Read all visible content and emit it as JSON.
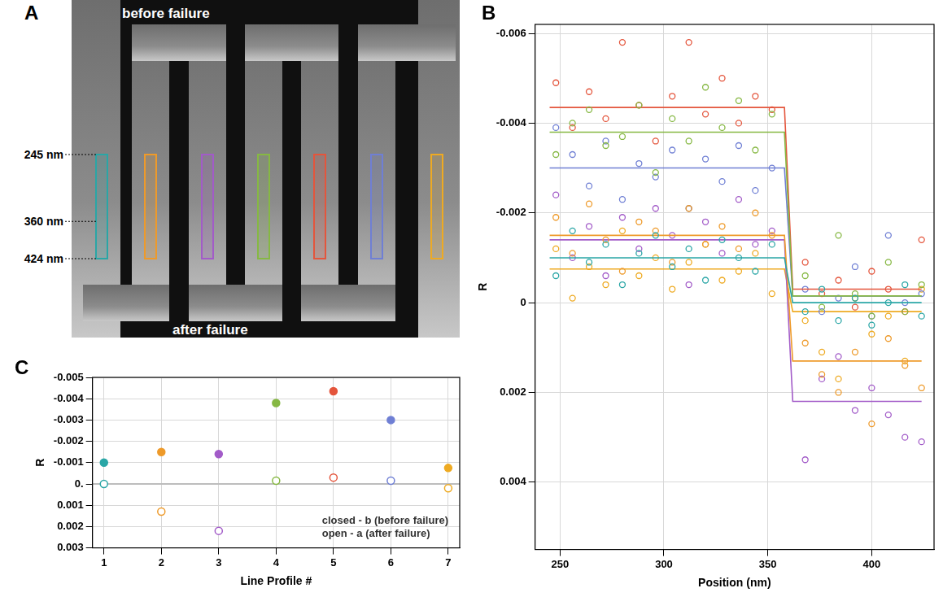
{
  "chart_data": [
    {
      "panel": "A",
      "type": "image",
      "labels": [
        "before failure",
        "after failure"
      ],
      "yticks": [
        {
          "value": 245,
          "label": "245 nm"
        },
        {
          "value": 360,
          "label": "360 nm"
        },
        {
          "value": 424,
          "label": "424 nm"
        }
      ],
      "colors": [
        "#2aa6a6",
        "#ee9a2a",
        "#a25bc8",
        "#86b843",
        "#e4553c",
        "#6f7fd4",
        "#eeaa22"
      ]
    },
    {
      "panel": "B",
      "type": "scatter",
      "x_label": "Position (nm)",
      "y_label": "R",
      "xlim": [
        238,
        430
      ],
      "xticks": [
        250,
        300,
        350,
        400
      ],
      "ylim": [
        -0.0062,
        0.0055
      ],
      "yticks": [
        -0.006,
        -0.004,
        -0.002,
        0,
        0.002,
        0.004
      ],
      "grid": true,
      "tick_labels": true,
      "x": [
        248,
        256,
        264,
        272,
        280,
        288,
        296,
        304,
        312,
        320,
        328,
        336,
        344,
        352,
        368,
        376,
        384,
        392,
        400,
        408,
        416,
        424
      ],
      "series": [
        {
          "color": "#2aa6a6",
          "marker": "open",
          "values": [
            -0.0006,
            -0.0016,
            -0.0009,
            -0.0013,
            -0.0004,
            -0.0011,
            -0.0015,
            -0.0008,
            -0.0012,
            -0.0005,
            -0.0014,
            -0.001,
            -0.0007,
            -0.0013,
            0.0002,
            -0.0003,
            0.0004,
            -0.0001,
            0.0005,
            0.0,
            -0.0004,
            0.0003
          ],
          "fit": {
            "x": [
              245,
              358,
              362,
              424
            ],
            "values": [
              -0.001,
              -0.001,
              0.0,
              0.0
            ]
          }
        },
        {
          "color": "#ee9a2a",
          "marker": "open",
          "values": [
            -0.0019,
            -0.0011,
            -0.0022,
            -0.0014,
            -0.0007,
            -0.0018,
            -0.0016,
            -0.0009,
            -0.0021,
            -0.0013,
            -0.0017,
            -0.0012,
            -0.002,
            -0.0015,
            0.0009,
            0.0016,
            0.002,
            0.0011,
            0.0027,
            0.0008,
            0.0014,
            0.0019
          ],
          "fit": {
            "x": [
              245,
              358,
              362,
              424
            ],
            "values": [
              -0.0015,
              -0.0015,
              0.0013,
              0.0013
            ]
          }
        },
        {
          "color": "#a25bc8",
          "marker": "open",
          "values": [
            -0.0024,
            -0.001,
            -0.0017,
            -0.0006,
            -0.0019,
            -0.0012,
            -0.0021,
            -0.0015,
            -0.0004,
            -0.0018,
            -0.0011,
            -0.0023,
            -0.0013,
            -0.0016,
            0.0035,
            0.0017,
            0.0012,
            0.0024,
            0.0019,
            0.0025,
            0.003,
            0.0031
          ],
          "fit": {
            "x": [
              245,
              358,
              362,
              424
            ],
            "values": [
              -0.0014,
              -0.0014,
              0.0022,
              0.0022
            ]
          }
        },
        {
          "color": "#86b843",
          "marker": "open",
          "values": [
            -0.0033,
            -0.004,
            -0.0043,
            -0.0035,
            -0.0037,
            -0.0044,
            -0.0029,
            -0.0041,
            -0.0036,
            -0.0048,
            -0.0039,
            -0.0045,
            -0.0034,
            -0.0042,
            -0.0006,
            0.0001,
            -0.0015,
            -0.0002,
            0.0003,
            -0.0009,
            0.0002,
            -0.0004
          ],
          "fit": {
            "x": [
              245,
              358,
              362,
              424
            ],
            "values": [
              -0.0038,
              -0.0038,
              -0.00015,
              -0.00015
            ]
          }
        },
        {
          "color": "#e4553c",
          "marker": "open",
          "values": [
            -0.0049,
            -0.0039,
            -0.0047,
            -0.0041,
            -0.0058,
            -0.0044,
            -0.0036,
            -0.0046,
            -0.0058,
            -0.0042,
            -0.005,
            -0.004,
            -0.0046,
            -0.0043,
            -0.0009,
            -0.0002,
            -0.0005,
            0.0001,
            -0.0007,
            -0.0003,
            0.0002,
            -0.0014
          ],
          "fit": {
            "x": [
              245,
              358,
              362,
              424
            ],
            "values": [
              -0.00435,
              -0.00435,
              -0.0003,
              -0.0003
            ]
          }
        },
        {
          "color": "#6f7fd4",
          "marker": "open",
          "values": [
            -0.0039,
            -0.0033,
            -0.0026,
            -0.0036,
            -0.0023,
            -0.0031,
            -0.0028,
            -0.0034,
            -0.0021,
            -0.0032,
            -0.0027,
            -0.0035,
            -0.0025,
            -0.003,
            -0.0003,
            0.0002,
            -0.0001,
            -0.0008,
            0.0003,
            -0.0015,
            0.0,
            -0.0002
          ],
          "fit": {
            "x": [
              245,
              358,
              362,
              424
            ],
            "values": [
              -0.003,
              -0.003,
              -0.00015,
              -0.00015
            ]
          }
        },
        {
          "color": "#eeaa22",
          "marker": "open",
          "values": [
            -0.0012,
            -0.0001,
            -0.0008,
            -0.0004,
            -0.0016,
            -0.0006,
            -0.001,
            -0.0003,
            -0.0009,
            -0.0013,
            -0.0005,
            -0.0007,
            -0.0011,
            -0.0002,
            0.0004,
            0.0011,
            0.0017,
            -0.0001,
            0.0007,
            0.0003,
            0.0013,
            -0.0003
          ],
          "fit": {
            "x": [
              245,
              358,
              362,
              424
            ],
            "values": [
              -0.00075,
              -0.00075,
              0.0002,
              0.0002
            ]
          }
        }
      ]
    },
    {
      "panel": "C",
      "type": "scatter",
      "x_label": "Line Profile #",
      "y_label": "R",
      "xlim": [
        0.8,
        7.2
      ],
      "xticks": [
        1,
        2,
        3,
        4,
        5,
        6,
        7
      ],
      "ylim": [
        -0.005,
        0.003
      ],
      "yticks": [
        -0.005,
        -0.004,
        -0.003,
        -0.002,
        -0.001,
        {
          "value": 0,
          "label": "0."
        },
        0.001,
        0.002,
        0.003
      ],
      "grid": true,
      "annotations": [
        "closed - b (before failure)",
        "open - a (after failure)"
      ],
      "x": [
        1,
        2,
        3,
        4,
        5,
        6,
        7
      ],
      "series": [
        {
          "marker": "filled",
          "colors": [
            "#2aa6a6",
            "#ee9a2a",
            "#a25bc8",
            "#86b843",
            "#e4553c",
            "#6f7fd4",
            "#eeaa22"
          ],
          "values": [
            -0.001,
            -0.0015,
            -0.0014,
            -0.0038,
            -0.00435,
            -0.003,
            -0.00075
          ]
        },
        {
          "marker": "open",
          "colors": [
            "#2aa6a6",
            "#ee9a2a",
            "#a25bc8",
            "#86b843",
            "#e4553c",
            "#6f7fd4",
            "#eeaa22"
          ],
          "values": [
            0.0,
            0.0013,
            0.0022,
            -0.00015,
            -0.0003,
            -0.00015,
            0.0002
          ]
        }
      ]
    }
  ]
}
